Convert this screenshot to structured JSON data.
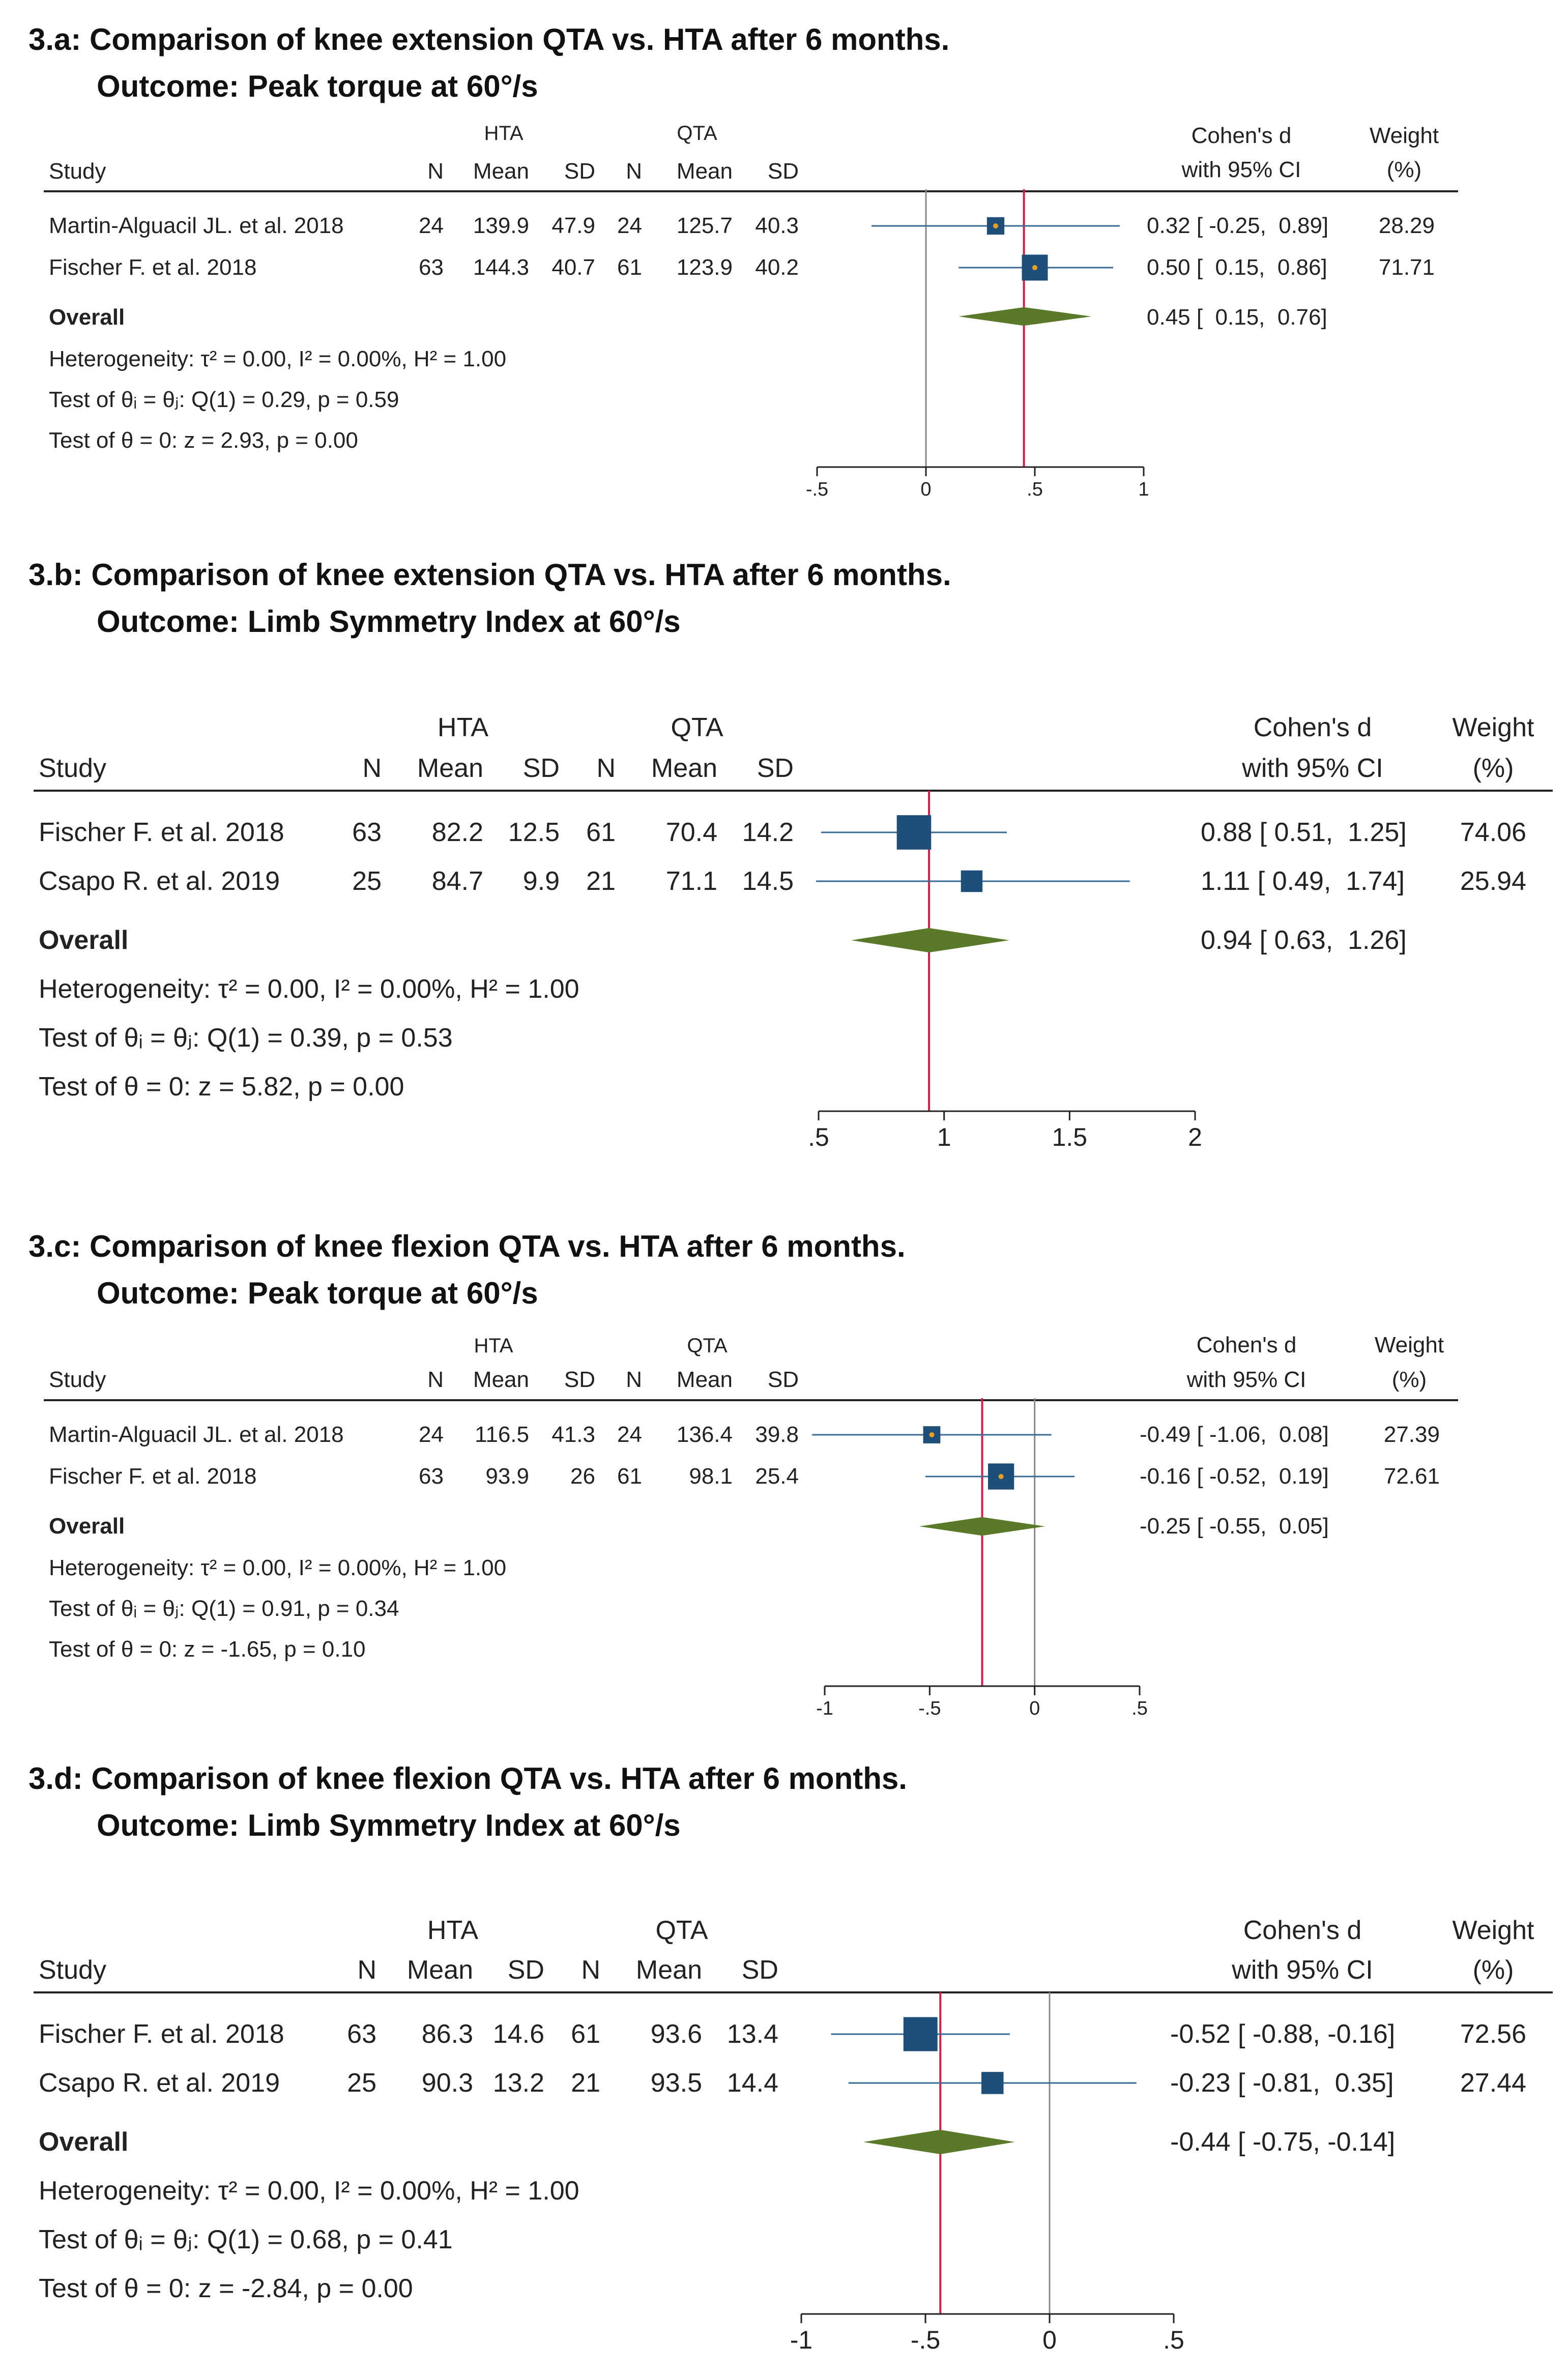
{
  "chart_data": [
    {
      "type": "forest",
      "title": "3.a: Comparison of knee extension QTA vs. HTA after 6 months.",
      "subtitle": "Outcome: Peak torque at 60°/s",
      "group_labels": [
        "HTA",
        "QTA"
      ],
      "columns": [
        "Study",
        "N",
        "Mean",
        "SD",
        "N",
        "Mean",
        "SD"
      ],
      "es_header": [
        "Cohen's d",
        "with 95% CI"
      ],
      "weight_header": [
        "Weight",
        "(%)"
      ],
      "studies": [
        {
          "study": "Martin-Alguacil JL. et al. 2018",
          "hta_n": "24",
          "hta_mean": "139.9",
          "hta_sd": "47.9",
          "qta_n": "24",
          "qta_mean": "125.7",
          "qta_sd": "40.3",
          "d": 0.32,
          "lo": -0.25,
          "hi": 0.89,
          "ci_text": "0.32 [ -0.25,  0.89]",
          "weight": 28.29,
          "weight_text": "28.29"
        },
        {
          "study": "Fischer F. et al. 2018",
          "hta_n": "63",
          "hta_mean": "144.3",
          "hta_sd": "40.7",
          "qta_n": "61",
          "qta_mean": "123.9",
          "qta_sd": "40.2",
          "d": 0.5,
          "lo": 0.15,
          "hi": 0.86,
          "ci_text": "0.50 [  0.15,  0.86]",
          "weight": 71.71,
          "weight_text": "71.71"
        }
      ],
      "overall": {
        "label": "Overall",
        "d": 0.45,
        "lo": 0.15,
        "hi": 0.76,
        "ci_text": "0.45 [  0.15,  0.76]"
      },
      "stats": [
        "Heterogeneity: τ² = 0.00, I² = 0.00%, H² = 1.00",
        "Test of θᵢ = θⱼ: Q(1) = 0.29, p = 0.59",
        "Test of θ = 0: z = 2.93, p = 0.00"
      ],
      "xlim": [
        -0.5,
        1
      ],
      "ticks": [
        -0.5,
        0,
        0.5,
        1
      ],
      "tick_labels": [
        "-.5",
        "0",
        ".5",
        "1"
      ]
    },
    {
      "type": "forest",
      "title": "3.b: Comparison of knee extension QTA vs. HTA after 6 months.",
      "subtitle": "Outcome: Limb Symmetry Index at 60°/s",
      "group_labels": [
        "HTA",
        "QTA"
      ],
      "columns": [
        "Study",
        "N",
        "Mean",
        "SD",
        "N",
        "Mean",
        "SD"
      ],
      "es_header": [
        "Cohen's d",
        "with 95% CI"
      ],
      "weight_header": [
        "Weight",
        "(%)"
      ],
      "studies": [
        {
          "study": "Fischer F. et al. 2018",
          "hta_n": "63",
          "hta_mean": "82.2",
          "hta_sd": "12.5",
          "qta_n": "61",
          "qta_mean": "70.4",
          "qta_sd": "14.2",
          "d": 0.88,
          "lo": 0.51,
          "hi": 1.25,
          "ci_text": "0.88 [ 0.51,  1.25]",
          "weight": 74.06,
          "weight_text": "74.06"
        },
        {
          "study": "Csapo R. et al. 2019",
          "hta_n": "25",
          "hta_mean": "84.7",
          "hta_sd": "9.9",
          "qta_n": "21",
          "qta_mean": "71.1",
          "qta_sd": "14.5",
          "d": 1.11,
          "lo": 0.49,
          "hi": 1.74,
          "ci_text": "1.11 [ 0.49,  1.74]",
          "weight": 25.94,
          "weight_text": "25.94"
        }
      ],
      "overall": {
        "label": "Overall",
        "d": 0.94,
        "lo": 0.63,
        "hi": 1.26,
        "ci_text": "0.94 [ 0.63,  1.26]"
      },
      "stats": [
        "Heterogeneity: τ² = 0.00, I² = 0.00%, H² = 1.00",
        "Test of θᵢ = θⱼ: Q(1) = 0.39, p = 0.53",
        "Test of θ = 0: z = 5.82, p = 0.00"
      ],
      "xlim": [
        0.5,
        2
      ],
      "ticks": [
        0.5,
        1,
        1.5,
        2
      ],
      "tick_labels": [
        ".5",
        "1",
        "1.5",
        "2"
      ]
    },
    {
      "type": "forest",
      "title": "3.c: Comparison of knee flexion QTA vs. HTA after 6 months.",
      "subtitle": "Outcome: Peak torque at 60°/s",
      "group_labels": [
        "HTA",
        "QTA"
      ],
      "columns": [
        "Study",
        "N",
        "Mean",
        "SD",
        "N",
        "Mean",
        "SD"
      ],
      "es_header": [
        "Cohen's d",
        "with 95% CI"
      ],
      "weight_header": [
        "Weight",
        "(%)"
      ],
      "studies": [
        {
          "study": "Martin-Alguacil JL. et al. 2018",
          "hta_n": "24",
          "hta_mean": "116.5",
          "hta_sd": "41.3",
          "qta_n": "24",
          "qta_mean": "136.4",
          "qta_sd": "39.8",
          "d": -0.49,
          "lo": -1.06,
          "hi": 0.08,
          "ci_text": "-0.49 [ -1.06,  0.08]",
          "weight": 27.39,
          "weight_text": "27.39"
        },
        {
          "study": "Fischer F. et al. 2018",
          "hta_n": "63",
          "hta_mean": "93.9",
          "hta_sd": "26",
          "qta_n": "61",
          "qta_mean": "98.1",
          "qta_sd": "25.4",
          "d": -0.16,
          "lo": -0.52,
          "hi": 0.19,
          "ci_text": "-0.16 [ -0.52,  0.19]",
          "weight": 72.61,
          "weight_text": "72.61"
        }
      ],
      "overall": {
        "label": "Overall",
        "d": -0.25,
        "lo": -0.55,
        "hi": 0.05,
        "ci_text": "-0.25 [ -0.55,  0.05]"
      },
      "stats": [
        "Heterogeneity: τ² = 0.00, I² = 0.00%, H² = 1.00",
        "Test of θᵢ = θⱼ: Q(1) = 0.91, p = 0.34",
        "Test of θ = 0: z = -1.65, p = 0.10"
      ],
      "xlim": [
        -1,
        0.5
      ],
      "ticks": [
        -1,
        -0.5,
        0,
        0.5
      ],
      "tick_labels": [
        "-1",
        "-.5",
        "0",
        ".5"
      ]
    },
    {
      "type": "forest",
      "title": "3.d: Comparison of knee flexion QTA vs. HTA after 6 months.",
      "subtitle": "Outcome: Limb Symmetry Index at 60°/s",
      "group_labels": [
        "HTA",
        "QTA"
      ],
      "columns": [
        "Study",
        "N",
        "Mean",
        "SD",
        "N",
        "Mean",
        "SD"
      ],
      "es_header": [
        "Cohen's d",
        "with 95% CI"
      ],
      "weight_header": [
        "Weight",
        "(%)"
      ],
      "studies": [
        {
          "study": "Fischer F. et al. 2018",
          "hta_n": "63",
          "hta_mean": "86.3",
          "hta_sd": "14.6",
          "qta_n": "61",
          "qta_mean": "93.6",
          "qta_sd": "13.4",
          "d": -0.52,
          "lo": -0.88,
          "hi": -0.16,
          "ci_text": "-0.52 [ -0.88, -0.16]",
          "weight": 72.56,
          "weight_text": "72.56"
        },
        {
          "study": "Csapo R. et al. 2019",
          "hta_n": "25",
          "hta_mean": "90.3",
          "hta_sd": "13.2",
          "qta_n": "21",
          "qta_mean": "93.5",
          "qta_sd": "14.4",
          "d": -0.23,
          "lo": -0.81,
          "hi": 0.35,
          "ci_text": "-0.23 [ -0.81,  0.35]",
          "weight": 27.44,
          "weight_text": "27.44"
        }
      ],
      "overall": {
        "label": "Overall",
        "d": -0.44,
        "lo": -0.75,
        "hi": -0.14,
        "ci_text": "-0.44 [ -0.75, -0.14]"
      },
      "stats": [
        "Heterogeneity: τ² = 0.00, I² = 0.00%, H² = 1.00",
        "Test of θᵢ = θⱼ: Q(1) = 0.68, p = 0.41",
        "Test of θ = 0: z = -2.84, p = 0.00"
      ],
      "xlim": [
        -1,
        0.5
      ],
      "ticks": [
        -1,
        -0.5,
        0,
        0.5
      ],
      "tick_labels": [
        "-1",
        "-.5",
        "0",
        ".5"
      ]
    }
  ],
  "colors": {
    "marker": "#1f4e79",
    "marker_dot": "#e8a020",
    "diamond": "#5a7a2a",
    "effect_line": "#d0204a",
    "null_line": "#888888",
    "ci_line": "#3b6a94",
    "text": "#222222"
  }
}
